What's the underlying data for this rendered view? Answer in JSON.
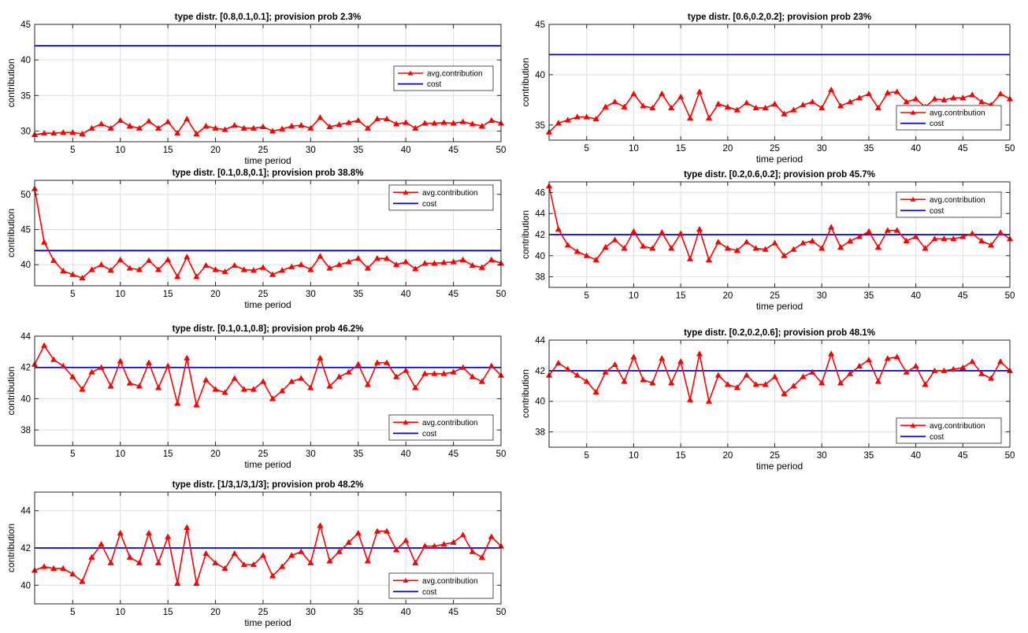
{
  "legend": {
    "avg_label": "avg.contribution",
    "cost_label": "cost"
  },
  "colors": {
    "avg": "#ff0000",
    "cost": "#0000dd",
    "grid": "#dedede",
    "axis": "#262626"
  },
  "chart_data": [
    {
      "type": "line",
      "title": "type distr. [0.8,0.1,0.1]; provision prob 2.3%",
      "xlabel": "time period",
      "ylabel": "contribution",
      "xlim": [
        1,
        50
      ],
      "ylim": [
        28.5,
        45
      ],
      "yticks": [
        30,
        35,
        40,
        45
      ],
      "xticks": [
        5,
        10,
        15,
        20,
        25,
        30,
        35,
        40,
        45,
        50
      ],
      "grid": true,
      "legend_position": "right",
      "cost": 42,
      "x": [
        1,
        2,
        3,
        4,
        5,
        6,
        7,
        8,
        9,
        10,
        11,
        12,
        13,
        14,
        15,
        16,
        17,
        18,
        19,
        20,
        21,
        22,
        23,
        24,
        25,
        26,
        27,
        28,
        29,
        30,
        31,
        32,
        33,
        34,
        35,
        36,
        37,
        38,
        39,
        40,
        41,
        42,
        43,
        44,
        45,
        46,
        47,
        48,
        49,
        50
      ],
      "values": [
        29.5,
        29.7,
        29.7,
        29.8,
        29.8,
        29.6,
        30.4,
        31.0,
        30.4,
        31.5,
        30.7,
        30.4,
        31.4,
        30.4,
        31.3,
        29.7,
        31.7,
        29.6,
        30.7,
        30.4,
        30.2,
        30.8,
        30.4,
        30.4,
        30.6,
        30.0,
        30.3,
        30.7,
        30.8,
        30.4,
        31.9,
        30.6,
        30.9,
        31.2,
        31.5,
        30.4,
        31.7,
        31.7,
        31.0,
        31.2,
        30.4,
        31.1,
        31.1,
        31.2,
        31.1,
        31.3,
        31.0,
        30.7,
        31.5,
        31.1
      ]
    },
    {
      "type": "line",
      "title": "type distr. [0.6,0.2,0.2]; provision prob 23%",
      "xlabel": "time period",
      "ylabel": "contribution",
      "xlim": [
        1,
        50
      ],
      "ylim": [
        33.5,
        45
      ],
      "yticks": [
        35,
        40,
        45
      ],
      "xticks": [
        5,
        10,
        15,
        20,
        25,
        30,
        35,
        40,
        45,
        50
      ],
      "grid": true,
      "legend_position": "right",
      "cost": 42,
      "x": [
        1,
        2,
        3,
        4,
        5,
        6,
        7,
        8,
        9,
        10,
        11,
        12,
        13,
        14,
        15,
        16,
        17,
        18,
        19,
        20,
        21,
        22,
        23,
        24,
        25,
        26,
        27,
        28,
        29,
        30,
        31,
        32,
        33,
        34,
        35,
        36,
        37,
        38,
        39,
        40,
        41,
        42,
        43,
        44,
        45,
        46,
        47,
        48,
        49,
        50
      ],
      "values": [
        34.3,
        35.2,
        35.5,
        35.8,
        35.8,
        35.6,
        36.8,
        37.3,
        36.8,
        38.1,
        36.9,
        36.7,
        38.1,
        36.7,
        37.8,
        35.7,
        38.3,
        35.7,
        37.1,
        36.8,
        36.5,
        37.2,
        36.7,
        36.7,
        37.1,
        36.1,
        36.5,
        37.0,
        37.3,
        36.7,
        38.5,
        36.9,
        37.3,
        37.7,
        38.1,
        36.7,
        38.2,
        38.3,
        37.3,
        37.6,
        36.8,
        37.6,
        37.5,
        37.7,
        37.7,
        38.0,
        37.3,
        37.0,
        38.1,
        37.6
      ]
    },
    {
      "type": "line",
      "title": "type distr. [0.1,0.8,0.1]; provision prob 38.8%",
      "xlabel": "time period",
      "ylabel": "contribution",
      "xlim": [
        1,
        50
      ],
      "ylim": [
        37,
        52
      ],
      "yticks": [
        40,
        45,
        50
      ],
      "xticks": [
        5,
        10,
        15,
        20,
        25,
        30,
        35,
        40,
        45,
        50
      ],
      "grid": true,
      "legend_position": "top-right",
      "cost": 42,
      "x": [
        1,
        2,
        3,
        4,
        5,
        6,
        7,
        8,
        9,
        10,
        11,
        12,
        13,
        14,
        15,
        16,
        17,
        18,
        19,
        20,
        21,
        22,
        23,
        24,
        25,
        26,
        27,
        28,
        29,
        30,
        31,
        32,
        33,
        34,
        35,
        36,
        37,
        38,
        39,
        40,
        41,
        42,
        43,
        44,
        45,
        46,
        47,
        48,
        49,
        50
      ],
      "values": [
        50.8,
        43.2,
        40.6,
        39.1,
        38.6,
        38.1,
        39.3,
        40.0,
        39.2,
        40.7,
        39.5,
        39.3,
        40.6,
        39.3,
        40.7,
        38.3,
        41.1,
        38.3,
        39.9,
        39.3,
        39.0,
        39.9,
        39.3,
        39.2,
        39.6,
        38.6,
        39.2,
        39.7,
        40.0,
        39.3,
        41.2,
        39.5,
        40.0,
        40.4,
        40.9,
        39.5,
        40.9,
        40.9,
        40.0,
        40.4,
        39.4,
        40.2,
        40.2,
        40.3,
        40.4,
        40.7,
        39.9,
        39.6,
        40.7,
        40.2
      ]
    },
    {
      "type": "line",
      "title": "type distr. [0.2,0.6,0.2]; provision prob 45.7%",
      "xlabel": "time period",
      "ylabel": "contribution",
      "xlim": [
        1,
        50
      ],
      "ylim": [
        37,
        47
      ],
      "yticks": [
        38,
        40,
        42,
        44,
        46
      ],
      "xticks": [
        5,
        10,
        15,
        20,
        25,
        30,
        35,
        40,
        45,
        50
      ],
      "grid": true,
      "legend_position": "top-right",
      "cost": 42,
      "x": [
        1,
        2,
        3,
        4,
        5,
        6,
        7,
        8,
        9,
        10,
        11,
        12,
        13,
        14,
        15,
        16,
        17,
        18,
        19,
        20,
        21,
        22,
        23,
        24,
        25,
        26,
        27,
        28,
        29,
        30,
        31,
        32,
        33,
        34,
        35,
        36,
        37,
        38,
        39,
        40,
        41,
        42,
        43,
        44,
        45,
        46,
        47,
        48,
        49,
        50
      ],
      "values": [
        46.6,
        42.5,
        41.0,
        40.4,
        40.0,
        39.6,
        40.8,
        41.5,
        40.7,
        42.3,
        40.9,
        40.7,
        42.2,
        40.7,
        42.1,
        39.7,
        42.5,
        39.6,
        41.3,
        40.7,
        40.5,
        41.3,
        40.7,
        40.6,
        41.2,
        40.0,
        40.6,
        41.2,
        41.4,
        40.7,
        42.7,
        40.8,
        41.4,
        41.8,
        42.3,
        40.8,
        42.4,
        42.4,
        41.4,
        41.8,
        40.7,
        41.6,
        41.6,
        41.6,
        41.8,
        42.1,
        41.4,
        41.0,
        42.2,
        41.6
      ]
    },
    {
      "type": "line",
      "title": "type distr. [0.1,0.1,0.8]; provision prob 46.2%",
      "xlabel": "time period",
      "ylabel": "contribution",
      "xlim": [
        1,
        50
      ],
      "ylim": [
        37,
        44
      ],
      "yticks": [
        38,
        40,
        42,
        44
      ],
      "xticks": [
        5,
        10,
        15,
        20,
        25,
        30,
        35,
        40,
        45,
        50
      ],
      "grid": true,
      "legend_position": "bottom-right",
      "cost": 42,
      "x": [
        1,
        2,
        3,
        4,
        5,
        6,
        7,
        8,
        9,
        10,
        11,
        12,
        13,
        14,
        15,
        16,
        17,
        18,
        19,
        20,
        21,
        22,
        23,
        24,
        25,
        26,
        27,
        28,
        29,
        30,
        31,
        32,
        33,
        34,
        35,
        36,
        37,
        38,
        39,
        40,
        41,
        42,
        43,
        44,
        45,
        46,
        47,
        48,
        49,
        50
      ],
      "values": [
        42.2,
        43.4,
        42.5,
        42.1,
        41.4,
        40.6,
        41.7,
        42.0,
        40.8,
        42.4,
        41.0,
        40.8,
        42.3,
        40.7,
        42.1,
        39.7,
        42.6,
        39.6,
        41.2,
        40.6,
        40.4,
        41.3,
        40.6,
        40.6,
        41.1,
        40.0,
        40.5,
        41.1,
        41.3,
        40.7,
        42.6,
        40.8,
        41.4,
        41.7,
        42.2,
        40.9,
        42.3,
        42.3,
        41.4,
        41.8,
        40.7,
        41.6,
        41.6,
        41.6,
        41.7,
        42.0,
        41.4,
        41.1,
        42.1,
        41.5
      ]
    },
    {
      "type": "line",
      "title": "type distr. [0.2,0.2,0.6]; provision prob 48.1%",
      "xlabel": "time period",
      "ylabel": "contribution",
      "xlim": [
        1,
        50
      ],
      "ylim": [
        37,
        44
      ],
      "yticks": [
        38,
        40,
        42,
        44
      ],
      "xticks": [
        5,
        10,
        15,
        20,
        25,
        30,
        35,
        40,
        45,
        50
      ],
      "grid": true,
      "legend_position": "bottom-right",
      "cost": 42,
      "x": [
        1,
        2,
        3,
        4,
        5,
        6,
        7,
        8,
        9,
        10,
        11,
        12,
        13,
        14,
        15,
        16,
        17,
        18,
        19,
        20,
        21,
        22,
        23,
        24,
        25,
        26,
        27,
        28,
        29,
        30,
        31,
        32,
        33,
        34,
        35,
        36,
        37,
        38,
        39,
        40,
        41,
        42,
        43,
        44,
        45,
        46,
        47,
        48,
        49,
        50
      ],
      "values": [
        41.7,
        42.5,
        42.1,
        41.7,
        41.3,
        40.6,
        41.9,
        42.4,
        41.3,
        42.9,
        41.4,
        41.2,
        42.8,
        41.2,
        42.6,
        40.1,
        43.1,
        40.0,
        41.7,
        41.1,
        40.9,
        41.7,
        41.1,
        41.1,
        41.6,
        40.5,
        41.0,
        41.6,
        41.9,
        41.2,
        43.1,
        41.2,
        41.8,
        42.3,
        42.7,
        41.3,
        42.8,
        42.9,
        41.9,
        42.3,
        41.1,
        42.0,
        42.0,
        42.1,
        42.2,
        42.6,
        41.8,
        41.5,
        42.6,
        42.0
      ]
    },
    {
      "type": "line",
      "title": "type distr. [1/3,1/3,1/3]; provision prob 48.2%",
      "xlabel": "time period",
      "ylabel": "contribution",
      "xlim": [
        1,
        50
      ],
      "ylim": [
        39,
        45
      ],
      "yticks": [
        40,
        42,
        44
      ],
      "xticks": [
        5,
        10,
        15,
        20,
        25,
        30,
        35,
        40,
        45,
        50
      ],
      "grid": true,
      "legend_position": "bottom-right",
      "cost": 42,
      "x": [
        1,
        2,
        3,
        4,
        5,
        6,
        7,
        8,
        9,
        10,
        11,
        12,
        13,
        14,
        15,
        16,
        17,
        18,
        19,
        20,
        21,
        22,
        23,
        24,
        25,
        26,
        27,
        28,
        29,
        30,
        31,
        32,
        33,
        34,
        35,
        36,
        37,
        38,
        39,
        40,
        41,
        42,
        43,
        44,
        45,
        46,
        47,
        48,
        49,
        50
      ],
      "values": [
        40.8,
        41.0,
        40.9,
        40.9,
        40.6,
        40.2,
        41.5,
        42.2,
        41.2,
        42.8,
        41.5,
        41.2,
        42.8,
        41.2,
        42.6,
        40.1,
        43.1,
        40.1,
        41.7,
        41.2,
        40.9,
        41.7,
        41.1,
        41.1,
        41.6,
        40.5,
        41.0,
        41.6,
        41.8,
        41.2,
        43.2,
        41.3,
        41.8,
        42.3,
        42.8,
        41.3,
        42.9,
        42.9,
        41.9,
        42.4,
        41.2,
        42.1,
        42.1,
        42.2,
        42.3,
        42.7,
        41.8,
        41.5,
        42.6,
        42.1
      ]
    }
  ]
}
